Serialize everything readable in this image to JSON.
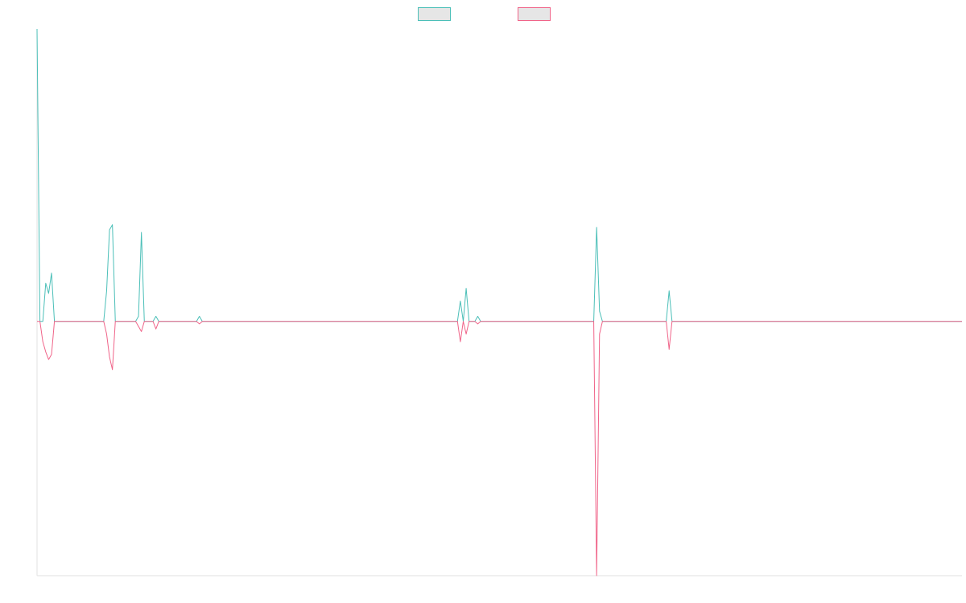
{
  "chart_data": {
    "type": "line",
    "title": "",
    "xlabel": "",
    "ylabel": "",
    "x": [
      0,
      1,
      2,
      3,
      4,
      5,
      6,
      7,
      8,
      9,
      10,
      11,
      12,
      13,
      14,
      15,
      16,
      17,
      18,
      19,
      20,
      21,
      22,
      23,
      24,
      25,
      26,
      27,
      28,
      29,
      30,
      31,
      32,
      33,
      34,
      35,
      36,
      37,
      38,
      39,
      40,
      41,
      42,
      43,
      44,
      45,
      46,
      47,
      48,
      49,
      50,
      51,
      52,
      53,
      54,
      55,
      56,
      57,
      58,
      59,
      60,
      61,
      62,
      63,
      64,
      65,
      66,
      67,
      68,
      69,
      70,
      71,
      72,
      73,
      74,
      75,
      76,
      77,
      78,
      79,
      80,
      81,
      82,
      83,
      84,
      85,
      86,
      87,
      88,
      89,
      90,
      91,
      92,
      93,
      94,
      95,
      96,
      97,
      98,
      99,
      100,
      101,
      102,
      103,
      104,
      105,
      106,
      107,
      108,
      109,
      110,
      111,
      112,
      113,
      114,
      115,
      116,
      117,
      118,
      119,
      120,
      121,
      122,
      123,
      124,
      125,
      126,
      127,
      128,
      129,
      130,
      131,
      132,
      133,
      134,
      135,
      136,
      137,
      138,
      139,
      140,
      141,
      142,
      143,
      144,
      145,
      146,
      147,
      148,
      149,
      150,
      151,
      152,
      153,
      154,
      155,
      156,
      157,
      158,
      159,
      160,
      161,
      162,
      163,
      164,
      165,
      166,
      167,
      168,
      169,
      170,
      171,
      172,
      173,
      174,
      175,
      176,
      177,
      178,
      179,
      180,
      181,
      182,
      183,
      184,
      185,
      186,
      187,
      188,
      189,
      190,
      191,
      192,
      193,
      194,
      195,
      196,
      197,
      198,
      199,
      200,
      201,
      202,
      203,
      204,
      205,
      206,
      207,
      208,
      209,
      210,
      211,
      212,
      213,
      214,
      215,
      216,
      217,
      218,
      219,
      220,
      221,
      222,
      223,
      224,
      225,
      226,
      227,
      228,
      229,
      230,
      231,
      232,
      233,
      234,
      235,
      236,
      237,
      238,
      239,
      240,
      241,
      242,
      243,
      244,
      245,
      246,
      247,
      248,
      249,
      250,
      251,
      252,
      253,
      254,
      255,
      256,
      257,
      258,
      259,
      260,
      261,
      262,
      263,
      264,
      265,
      266,
      267,
      268,
      269,
      270,
      271,
      272,
      273,
      274,
      275,
      276,
      277,
      278,
      279,
      280,
      281,
      282,
      283,
      284,
      285,
      286,
      287,
      288,
      289,
      290,
      291,
      292,
      293,
      294,
      295,
      296,
      297,
      298,
      299,
      300,
      301,
      302,
      303,
      304,
      305,
      306,
      307,
      308,
      309,
      310,
      311,
      312,
      313,
      314,
      315,
      316,
      317,
      318,
      319
    ],
    "ylim": [
      -100,
      115
    ],
    "grid": false,
    "legend": "top-center",
    "series": [
      {
        "color": "#4bbfb8",
        "fill": "#e6e6e6",
        "points": [
          [
            0,
            115
          ],
          [
            1,
            0
          ],
          [
            2,
            0
          ],
          [
            3,
            15
          ],
          [
            4,
            11
          ],
          [
            5,
            19
          ],
          [
            6,
            0
          ],
          [
            7,
            0
          ],
          [
            8,
            0
          ],
          [
            9,
            0
          ],
          [
            10,
            0
          ],
          [
            11,
            0
          ],
          [
            12,
            0
          ],
          [
            13,
            0
          ],
          [
            14,
            0
          ],
          [
            15,
            0
          ],
          [
            16,
            0
          ],
          [
            17,
            0
          ],
          [
            18,
            0
          ],
          [
            19,
            0
          ],
          [
            20,
            0
          ],
          [
            21,
            0
          ],
          [
            22,
            0
          ],
          [
            23,
            0
          ],
          [
            24,
            12
          ],
          [
            25,
            36
          ],
          [
            26,
            38
          ],
          [
            27,
            0
          ],
          [
            28,
            0
          ],
          [
            29,
            0
          ],
          [
            30,
            0
          ],
          [
            31,
            0
          ],
          [
            32,
            0
          ],
          [
            33,
            0
          ],
          [
            34,
            0
          ],
          [
            35,
            2
          ],
          [
            36,
            35
          ],
          [
            37,
            0
          ],
          [
            38,
            0
          ],
          [
            39,
            0
          ],
          [
            40,
            0
          ],
          [
            41,
            2
          ],
          [
            42,
            0
          ],
          [
            43,
            0
          ],
          [
            44,
            0
          ],
          [
            45,
            0
          ],
          [
            46,
            0
          ],
          [
            47,
            0
          ],
          [
            48,
            0
          ],
          [
            49,
            0
          ],
          [
            50,
            0
          ],
          [
            51,
            0
          ],
          [
            52,
            0
          ],
          [
            53,
            0
          ],
          [
            54,
            0
          ],
          [
            55,
            0
          ],
          [
            56,
            2
          ],
          [
            57,
            0
          ],
          [
            58,
            0
          ],
          [
            59,
            0
          ],
          [
            60,
            0
          ],
          [
            145,
            0
          ],
          [
            146,
            8
          ],
          [
            147,
            0
          ],
          [
            148,
            13
          ],
          [
            149,
            0
          ],
          [
            150,
            0
          ],
          [
            151,
            0
          ],
          [
            152,
            2
          ],
          [
            153,
            0
          ],
          [
            154,
            0
          ],
          [
            155,
            0
          ],
          [
            156,
            0
          ],
          [
            157,
            0
          ],
          [
            158,
            0
          ],
          [
            159,
            0
          ],
          [
            160,
            0
          ],
          [
            190,
            0
          ],
          [
            191,
            0
          ],
          [
            192,
            0
          ],
          [
            193,
            37
          ],
          [
            194,
            4
          ],
          [
            195,
            0
          ],
          [
            196,
            0
          ],
          [
            216,
            0
          ],
          [
            217,
            0
          ],
          [
            218,
            12
          ],
          [
            219,
            0
          ],
          [
            220,
            0
          ],
          [
            319,
            0
          ]
        ]
      },
      {
        "color": "#f06489",
        "fill": "#e6e6e6",
        "points": [
          [
            0,
            0
          ],
          [
            1,
            0
          ],
          [
            2,
            -8
          ],
          [
            3,
            -12
          ],
          [
            4,
            -15
          ],
          [
            5,
            -13
          ],
          [
            6,
            0
          ],
          [
            7,
            0
          ],
          [
            13,
            0
          ],
          [
            23,
            0
          ],
          [
            24,
            -5
          ],
          [
            25,
            -14
          ],
          [
            26,
            -19
          ],
          [
            27,
            0
          ],
          [
            28,
            0
          ],
          [
            34,
            0
          ],
          [
            35,
            -2
          ],
          [
            36,
            -4
          ],
          [
            37,
            0
          ],
          [
            38,
            0
          ],
          [
            40,
            0
          ],
          [
            41,
            -3
          ],
          [
            42,
            0
          ],
          [
            55,
            0
          ],
          [
            56,
            -1
          ],
          [
            57,
            0
          ],
          [
            60,
            0
          ],
          [
            145,
            0
          ],
          [
            146,
            -8
          ],
          [
            147,
            0
          ],
          [
            148,
            -5
          ],
          [
            149,
            0
          ],
          [
            150,
            0
          ],
          [
            151,
            0
          ],
          [
            152,
            -1
          ],
          [
            153,
            0
          ],
          [
            160,
            0
          ],
          [
            190,
            0
          ],
          [
            192,
            0
          ],
          [
            193,
            -100
          ],
          [
            194,
            -5
          ],
          [
            195,
            0
          ],
          [
            196,
            0
          ],
          [
            216,
            0
          ],
          [
            217,
            0
          ],
          [
            218,
            -11
          ],
          [
            219,
            0
          ],
          [
            220,
            0
          ],
          [
            319,
            0
          ]
        ]
      }
    ]
  }
}
